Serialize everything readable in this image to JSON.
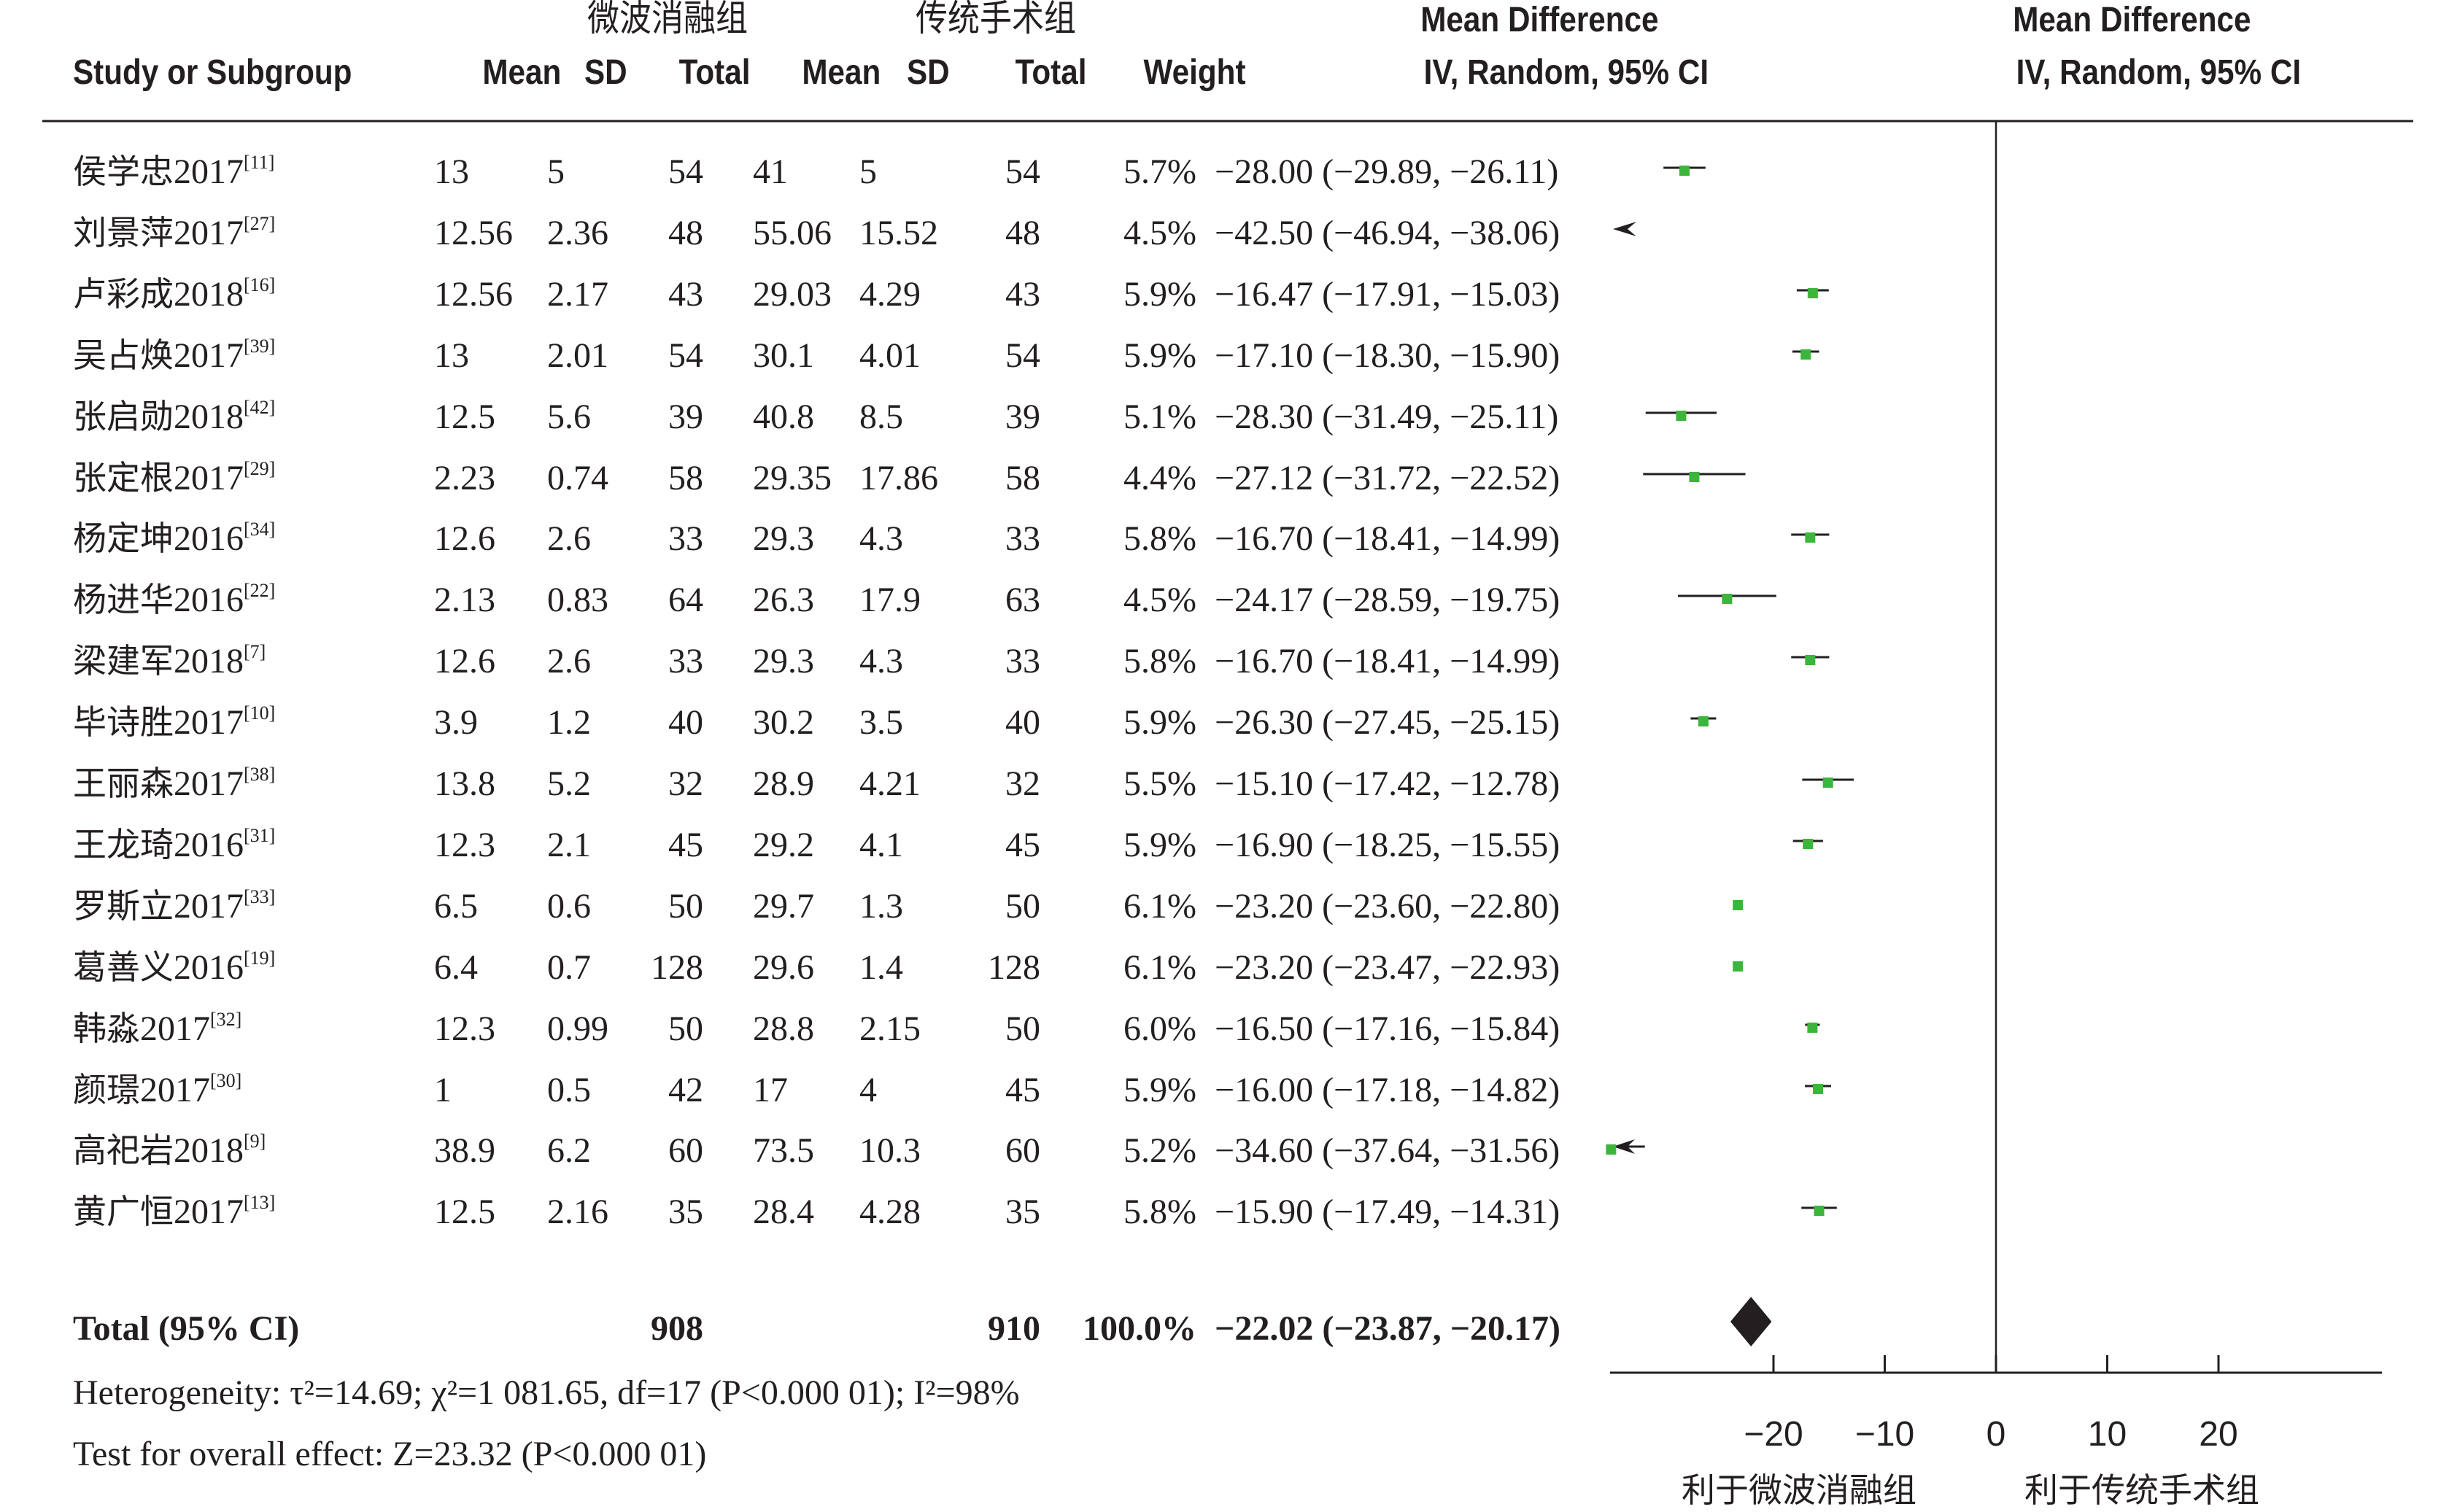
{
  "header": {
    "group_experimental": "微波消融组",
    "group_control": "传统手术组",
    "col_study": "Study or Subgroup",
    "col_mean1": "Mean",
    "col_sd1": "SD",
    "col_total1": "Total",
    "col_mean2": "Mean",
    "col_sd2": "SD",
    "col_total2": "Total",
    "col_weight": "Weight",
    "col_md_title": "Mean Difference",
    "col_md_method": "IV, Random, 95% CI",
    "plot_title": "Mean Difference",
    "plot_method": "IV, Random, 95% CI"
  },
  "studies": [
    {
      "name": "侯学忠",
      "year": "2017",
      "ref": "[11]",
      "mean1": "13",
      "sd1": "5",
      "total1": "54",
      "mean2": "41",
      "sd2": "5",
      "total2": "54",
      "weight": "5.7%",
      "ci_text": "−28.00 (−29.89, −26.11)"
    },
    {
      "name": "刘景萍",
      "year": "2017",
      "ref": "[27]",
      "mean1": "12.56",
      "sd1": "2.36",
      "total1": "48",
      "mean2": "55.06",
      "sd2": "15.52",
      "total2": "48",
      "weight": "4.5%",
      "ci_text": "−42.50 (−46.94, −38.06)"
    },
    {
      "name": "卢彩成",
      "year": "2018",
      "ref": "[16]",
      "mean1": "12.56",
      "sd1": "2.17",
      "total1": "43",
      "mean2": "29.03",
      "sd2": "4.29",
      "total2": "43",
      "weight": "5.9%",
      "ci_text": "−16.47 (−17.91, −15.03)"
    },
    {
      "name": "吴占焕",
      "year": "2017",
      "ref": "[39]",
      "mean1": "13",
      "sd1": "2.01",
      "total1": "54",
      "mean2": "30.1",
      "sd2": "4.01",
      "total2": "54",
      "weight": "5.9%",
      "ci_text": "−17.10 (−18.30, −15.90)"
    },
    {
      "name": "张启勋",
      "year": "2018",
      "ref": "[42]",
      "mean1": "12.5",
      "sd1": "5.6",
      "total1": "39",
      "mean2": "40.8",
      "sd2": "8.5",
      "total2": "39",
      "weight": "5.1%",
      "ci_text": "−28.30 (−31.49, −25.11)"
    },
    {
      "name": "张定根",
      "year": "2017",
      "ref": "[29]",
      "mean1": "2.23",
      "sd1": "0.74",
      "total1": "58",
      "mean2": "29.35",
      "sd2": "17.86",
      "total2": "58",
      "weight": "4.4%",
      "ci_text": "−27.12 (−31.72, −22.52)"
    },
    {
      "name": "杨定坤",
      "year": "2016",
      "ref": "[34]",
      "mean1": "12.6",
      "sd1": "2.6",
      "total1": "33",
      "mean2": "29.3",
      "sd2": "4.3",
      "total2": "33",
      "weight": "5.8%",
      "ci_text": "−16.70 (−18.41, −14.99)"
    },
    {
      "name": "杨进华",
      "year": "2016",
      "ref": "[22]",
      "mean1": "2.13",
      "sd1": "0.83",
      "total1": "64",
      "mean2": "26.3",
      "sd2": "17.9",
      "total2": "63",
      "weight": "4.5%",
      "ci_text": "−24.17 (−28.59, −19.75)"
    },
    {
      "name": "梁建军",
      "year": "2018",
      "ref": "[7]",
      "mean1": "12.6",
      "sd1": "2.6",
      "total1": "33",
      "mean2": "29.3",
      "sd2": "4.3",
      "total2": "33",
      "weight": "5.8%",
      "ci_text": "−16.70 (−18.41, −14.99)"
    },
    {
      "name": "毕诗胜",
      "year": "2017",
      "ref": "[10]",
      "mean1": "3.9",
      "sd1": "1.2",
      "total1": "40",
      "mean2": "30.2",
      "sd2": "3.5",
      "total2": "40",
      "weight": "5.9%",
      "ci_text": "−26.30 (−27.45, −25.15)"
    },
    {
      "name": "王丽森",
      "year": "2017",
      "ref": "[38]",
      "mean1": "13.8",
      "sd1": "5.2",
      "total1": "32",
      "mean2": "28.9",
      "sd2": "4.21",
      "total2": "32",
      "weight": "5.5%",
      "ci_text": "−15.10 (−17.42, −12.78)"
    },
    {
      "name": "王龙琦",
      "year": "2016",
      "ref": "[31]",
      "mean1": "12.3",
      "sd1": "2.1",
      "total1": "45",
      "mean2": "29.2",
      "sd2": "4.1",
      "total2": "45",
      "weight": "5.9%",
      "ci_text": "−16.90 (−18.25, −15.55)"
    },
    {
      "name": "罗斯立",
      "year": "2017",
      "ref": "[33]",
      "mean1": "6.5",
      "sd1": "0.6",
      "total1": "50",
      "mean2": "29.7",
      "sd2": "1.3",
      "total2": "50",
      "weight": "6.1%",
      "ci_text": "−23.20 (−23.60, −22.80)"
    },
    {
      "name": "葛善义",
      "year": "2016",
      "ref": "[19]",
      "mean1": "6.4",
      "sd1": "0.7",
      "total1": "128",
      "mean2": "29.6",
      "sd2": "1.4",
      "total2": "128",
      "weight": "6.1%",
      "ci_text": "−23.20 (−23.47, −22.93)"
    },
    {
      "name": "韩淼",
      "year": "2017",
      "ref": "[32]",
      "mean1": "12.3",
      "sd1": "0.99",
      "total1": "50",
      "mean2": "28.8",
      "sd2": "2.15",
      "total2": "50",
      "weight": "6.0%",
      "ci_text": "−16.50 (−17.16, −15.84)"
    },
    {
      "name": "颜璟",
      "year": "2017",
      "ref": "[30]",
      "mean1": "1",
      "sd1": "0.5",
      "total1": "42",
      "mean2": "17",
      "sd2": "4",
      "total2": "45",
      "weight": "5.9%",
      "ci_text": "−16.00 (−17.18, −14.82)"
    },
    {
      "name": "高祀岩",
      "year": "2018",
      "ref": "[9]",
      "mean1": "38.9",
      "sd1": "6.2",
      "total1": "60",
      "mean2": "73.5",
      "sd2": "10.3",
      "total2": "60",
      "weight": "5.2%",
      "ci_text": "−34.60 (−37.64, −31.56)"
    },
    {
      "name": "黄广恒",
      "year": "2017",
      "ref": "[13]",
      "mean1": "12.5",
      "sd1": "2.16",
      "total1": "35",
      "mean2": "28.4",
      "sd2": "4.28",
      "total2": "35",
      "weight": "5.8%",
      "ci_text": "−15.90 (−17.49, −14.31)"
    }
  ],
  "total": {
    "label": "Total (95% CI)",
    "total1": "908",
    "total2": "910",
    "weight": "100.0%",
    "ci_text": "−22.02 (−23.87, −20.17)"
  },
  "footer": {
    "heterogeneity": "Heterogeneity: τ²=14.69; χ²=1 081.65, df=17 (P<0.000 01); I²=98%",
    "overall_effect": "Test for overall effect: Z=23.32 (P<0.000 01)"
  },
  "axis": {
    "favors_left": "利于微波消融组",
    "favors_right": "利于传统手术组"
  },
  "colors": {
    "marker": "#3cb53c",
    "text": "#231f20",
    "diamond": "#231f20"
  },
  "chart_data": {
    "type": "forest",
    "title": "Mean Difference",
    "subtitle": "IV, Random, 95% CI",
    "xlabel_left": "利于微波消融组",
    "xlabel_right": "利于传统手术组",
    "xticks": [
      -20,
      -10,
      0,
      10,
      20
    ],
    "xlim": [
      -35,
      35
    ],
    "reference_line": 0,
    "series": [
      {
        "study": "侯学忠2017",
        "md": -28.0,
        "lower": -29.89,
        "upper": -26.11,
        "weight": 5.7
      },
      {
        "study": "刘景萍2017",
        "md": -42.5,
        "lower": -46.94,
        "upper": -38.06,
        "weight": 4.5
      },
      {
        "study": "卢彩成2018",
        "md": -16.47,
        "lower": -17.91,
        "upper": -15.03,
        "weight": 5.9
      },
      {
        "study": "吴占焕2017",
        "md": -17.1,
        "lower": -18.3,
        "upper": -15.9,
        "weight": 5.9
      },
      {
        "study": "张启勋2018",
        "md": -28.3,
        "lower": -31.49,
        "upper": -25.11,
        "weight": 5.1
      },
      {
        "study": "张定根2017",
        "md": -27.12,
        "lower": -31.72,
        "upper": -22.52,
        "weight": 4.4
      },
      {
        "study": "杨定坤2016",
        "md": -16.7,
        "lower": -18.41,
        "upper": -14.99,
        "weight": 5.8
      },
      {
        "study": "杨进华2016",
        "md": -24.17,
        "lower": -28.59,
        "upper": -19.75,
        "weight": 4.5
      },
      {
        "study": "梁建军2018",
        "md": -16.7,
        "lower": -18.41,
        "upper": -14.99,
        "weight": 5.8
      },
      {
        "study": "毕诗胜2017",
        "md": -26.3,
        "lower": -27.45,
        "upper": -25.15,
        "weight": 5.9
      },
      {
        "study": "王丽森2017",
        "md": -15.1,
        "lower": -17.42,
        "upper": -12.78,
        "weight": 5.5
      },
      {
        "study": "王龙琦2016",
        "md": -16.9,
        "lower": -18.25,
        "upper": -15.55,
        "weight": 5.9
      },
      {
        "study": "罗斯立2017",
        "md": -23.2,
        "lower": -23.6,
        "upper": -22.8,
        "weight": 6.1
      },
      {
        "study": "葛善义2016",
        "md": -23.2,
        "lower": -23.47,
        "upper": -22.93,
        "weight": 6.1
      },
      {
        "study": "韩淼2017",
        "md": -16.5,
        "lower": -17.16,
        "upper": -15.84,
        "weight": 6.0
      },
      {
        "study": "颜璟2017",
        "md": -16.0,
        "lower": -17.18,
        "upper": -14.82,
        "weight": 5.9
      },
      {
        "study": "高祀岩2018",
        "md": -34.6,
        "lower": -37.64,
        "upper": -31.56,
        "weight": 5.2
      },
      {
        "study": "黄广恒2017",
        "md": -15.9,
        "lower": -17.49,
        "upper": -14.31,
        "weight": 5.8
      }
    ],
    "pooled": {
      "md": -22.02,
      "lower": -23.87,
      "upper": -20.17
    }
  }
}
